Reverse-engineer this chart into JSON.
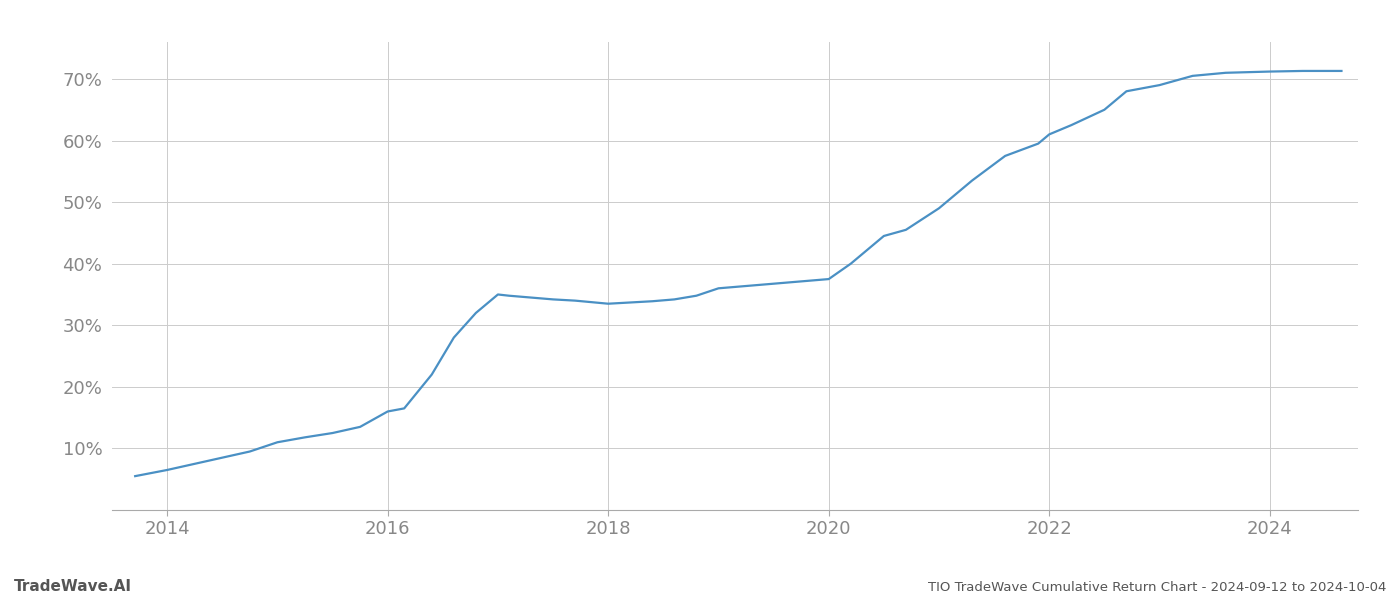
{
  "title": "TIO TradeWave Cumulative Return Chart - 2024-09-12 to 2024-10-04",
  "watermark": "TradeWave.AI",
  "line_color": "#4a90c4",
  "background_color": "#ffffff",
  "grid_color": "#cccccc",
  "x_values": [
    2013.71,
    2014.0,
    2014.25,
    2014.5,
    2014.75,
    2015.0,
    2015.25,
    2015.5,
    2015.75,
    2016.0,
    2016.15,
    2016.4,
    2016.6,
    2016.8,
    2017.0,
    2017.1,
    2017.3,
    2017.5,
    2017.7,
    2018.0,
    2018.2,
    2018.4,
    2018.6,
    2018.8,
    2019.0,
    2019.2,
    2019.4,
    2019.6,
    2019.8,
    2020.0,
    2020.2,
    2020.5,
    2020.7,
    2021.0,
    2021.3,
    2021.6,
    2021.9,
    2022.0,
    2022.2,
    2022.5,
    2022.7,
    2023.0,
    2023.3,
    2023.6,
    2024.0,
    2024.3,
    2024.65
  ],
  "y_values": [
    5.5,
    6.5,
    7.5,
    8.5,
    9.5,
    11.0,
    11.8,
    12.5,
    13.5,
    16.0,
    16.5,
    22.0,
    28.0,
    32.0,
    35.0,
    34.8,
    34.5,
    34.2,
    34.0,
    33.5,
    33.7,
    33.9,
    34.2,
    34.8,
    36.0,
    36.3,
    36.6,
    36.9,
    37.2,
    37.5,
    40.0,
    44.5,
    45.5,
    49.0,
    53.5,
    57.5,
    59.5,
    61.0,
    62.5,
    65.0,
    68.0,
    69.0,
    70.5,
    71.0,
    71.2,
    71.3,
    71.3
  ],
  "xlim": [
    2013.5,
    2024.8
  ],
  "ylim": [
    0,
    76
  ],
  "yticks": [
    10,
    20,
    30,
    40,
    50,
    60,
    70
  ],
  "xticks": [
    2014,
    2016,
    2018,
    2020,
    2022,
    2024
  ],
  "line_width": 1.6,
  "title_fontsize": 9.5,
  "watermark_fontsize": 11,
  "tick_fontsize": 13,
  "tick_color": "#888888"
}
